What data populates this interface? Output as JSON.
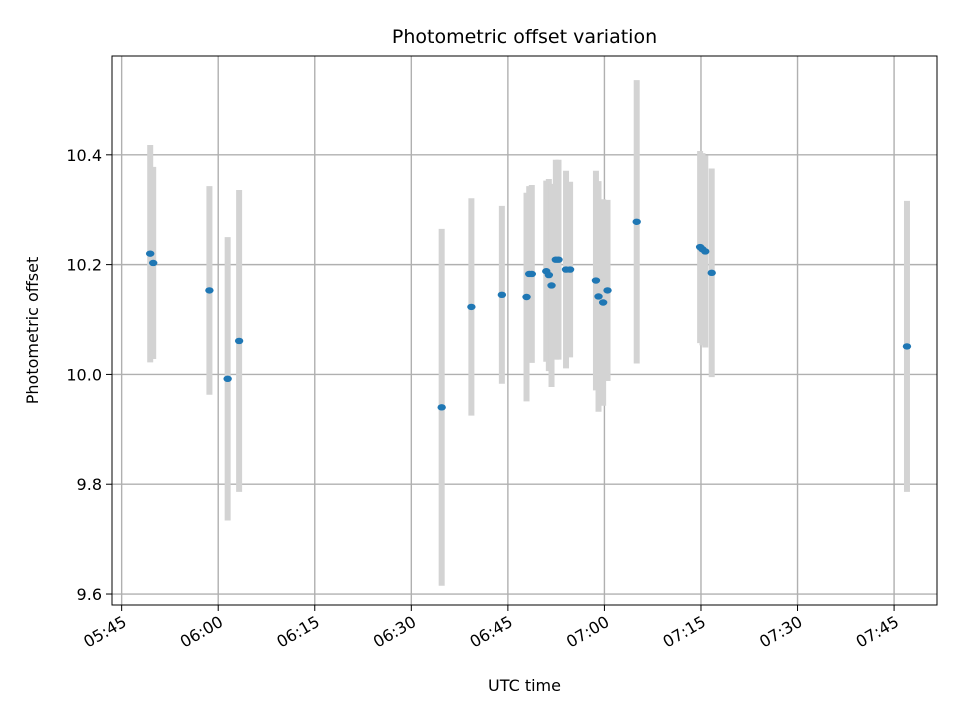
{
  "chart_data": {
    "type": "scatter",
    "title": "Photometric offset variation",
    "xlabel": "UTC time",
    "ylabel": "Photometric offset",
    "x_ticks": [
      "05:45",
      "06:00",
      "06:15",
      "06:30",
      "06:45",
      "07:00",
      "07:15",
      "07:30",
      "07:45"
    ],
    "y_ticks": [
      "9.6",
      "9.8",
      "10.0",
      "10.2",
      "10.4"
    ],
    "xlim": [
      "05:43:30",
      "07:51:40"
    ],
    "ylim": [
      9.58,
      10.58
    ],
    "grid": true,
    "marker_color": "#1f77b4",
    "errorbar_color": "#d3d3d3",
    "points": [
      {
        "time": "05:49:26",
        "y": 10.22,
        "err": 0.198
      },
      {
        "time": "05:49:54",
        "y": 10.203,
        "err": 0.175
      },
      {
        "time": "05:58:38",
        "y": 10.153,
        "err": 0.19
      },
      {
        "time": "06:01:28",
        "y": 9.992,
        "err": 0.258
      },
      {
        "time": "06:03:15",
        "y": 10.061,
        "err": 0.275
      },
      {
        "time": "06:34:43",
        "y": 9.94,
        "err": 0.325
      },
      {
        "time": "06:39:20",
        "y": 10.123,
        "err": 0.198
      },
      {
        "time": "06:44:04",
        "y": 10.145,
        "err": 0.162
      },
      {
        "time": "06:47:54",
        "y": 10.141,
        "err": 0.19
      },
      {
        "time": "06:48:19",
        "y": 10.183,
        "err": 0.16
      },
      {
        "time": "06:48:43",
        "y": 10.183,
        "err": 0.162
      },
      {
        "time": "06:50:58",
        "y": 10.188,
        "err": 0.165
      },
      {
        "time": "06:51:22",
        "y": 10.181,
        "err": 0.175
      },
      {
        "time": "06:51:47",
        "y": 10.162,
        "err": 0.185
      },
      {
        "time": "06:52:27",
        "y": 10.209,
        "err": 0.182
      },
      {
        "time": "06:52:52",
        "y": 10.209,
        "err": 0.182
      },
      {
        "time": "06:54:02",
        "y": 10.191,
        "err": 0.18
      },
      {
        "time": "06:54:40",
        "y": 10.191,
        "err": 0.16
      },
      {
        "time": "06:58:41",
        "y": 10.171,
        "err": 0.2
      },
      {
        "time": "06:59:05",
        "y": 10.142,
        "err": 0.21
      },
      {
        "time": "06:59:48",
        "y": 10.131,
        "err": 0.188
      },
      {
        "time": "07:00:29",
        "y": 10.153,
        "err": 0.165
      },
      {
        "time": "07:05:01",
        "y": 10.278,
        "err": 0.258
      },
      {
        "time": "07:14:52",
        "y": 10.232,
        "err": 0.175
      },
      {
        "time": "07:15:14",
        "y": 10.228,
        "err": 0.175
      },
      {
        "time": "07:15:40",
        "y": 10.224,
        "err": 0.175
      },
      {
        "time": "07:16:40",
        "y": 10.185,
        "err": 0.19
      },
      {
        "time": "07:47:00",
        "y": 10.051,
        "err": 0.265
      }
    ]
  }
}
